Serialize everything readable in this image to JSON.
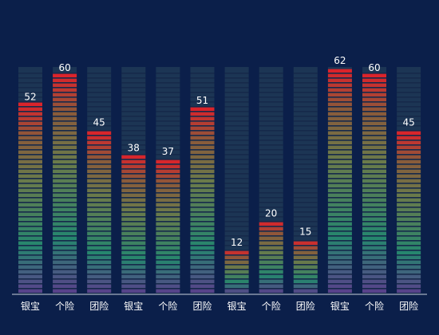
{
  "chart_data": {
    "type": "bar",
    "categories": [
      "银宝",
      "个险",
      "团险",
      "银宝",
      "个险",
      "团险",
      "银宝",
      "个险",
      "团险",
      "银宝",
      "个险",
      "团险"
    ],
    "values": [
      52,
      60,
      45,
      38,
      37,
      51,
      12,
      20,
      15,
      62,
      60,
      45
    ],
    "ylim": [
      0,
      62
    ],
    "grid": false,
    "legend": "none",
    "colors": {
      "background": "#0b1f4a",
      "track": "#1c3554",
      "gradient_bottom": "#5a3f8c",
      "gradient_mid": "#26866e",
      "gradient_upper": "#8a5a3a",
      "gradient_top": "#e0202a",
      "axis": "#c8d0dc",
      "text": "#ffffff"
    }
  }
}
